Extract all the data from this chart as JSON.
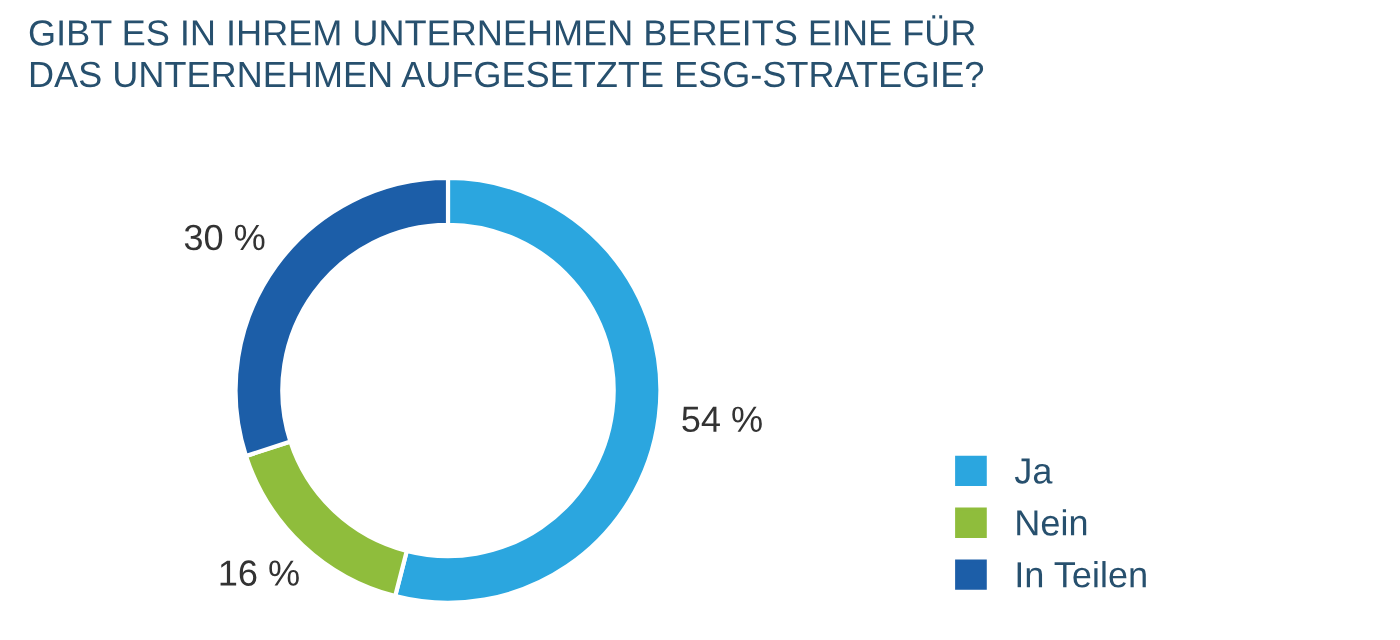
{
  "chart_data": {
    "type": "donut",
    "title": "GIBT ES IN IHREM UNTERNEHMEN BEREITS EINE FÜR\nDAS UNTERNEHMEN AUFGESETZTE ESG-STRATEGIE?",
    "categories": [
      "Ja",
      "Nein",
      "In Teilen"
    ],
    "values": [
      54,
      16,
      30
    ],
    "colors": [
      "#2ba6df",
      "#8fbd3c",
      "#1c5ea8"
    ],
    "value_labels": [
      "54 %",
      "16 %",
      "30 %"
    ],
    "legend": "bottom right"
  }
}
